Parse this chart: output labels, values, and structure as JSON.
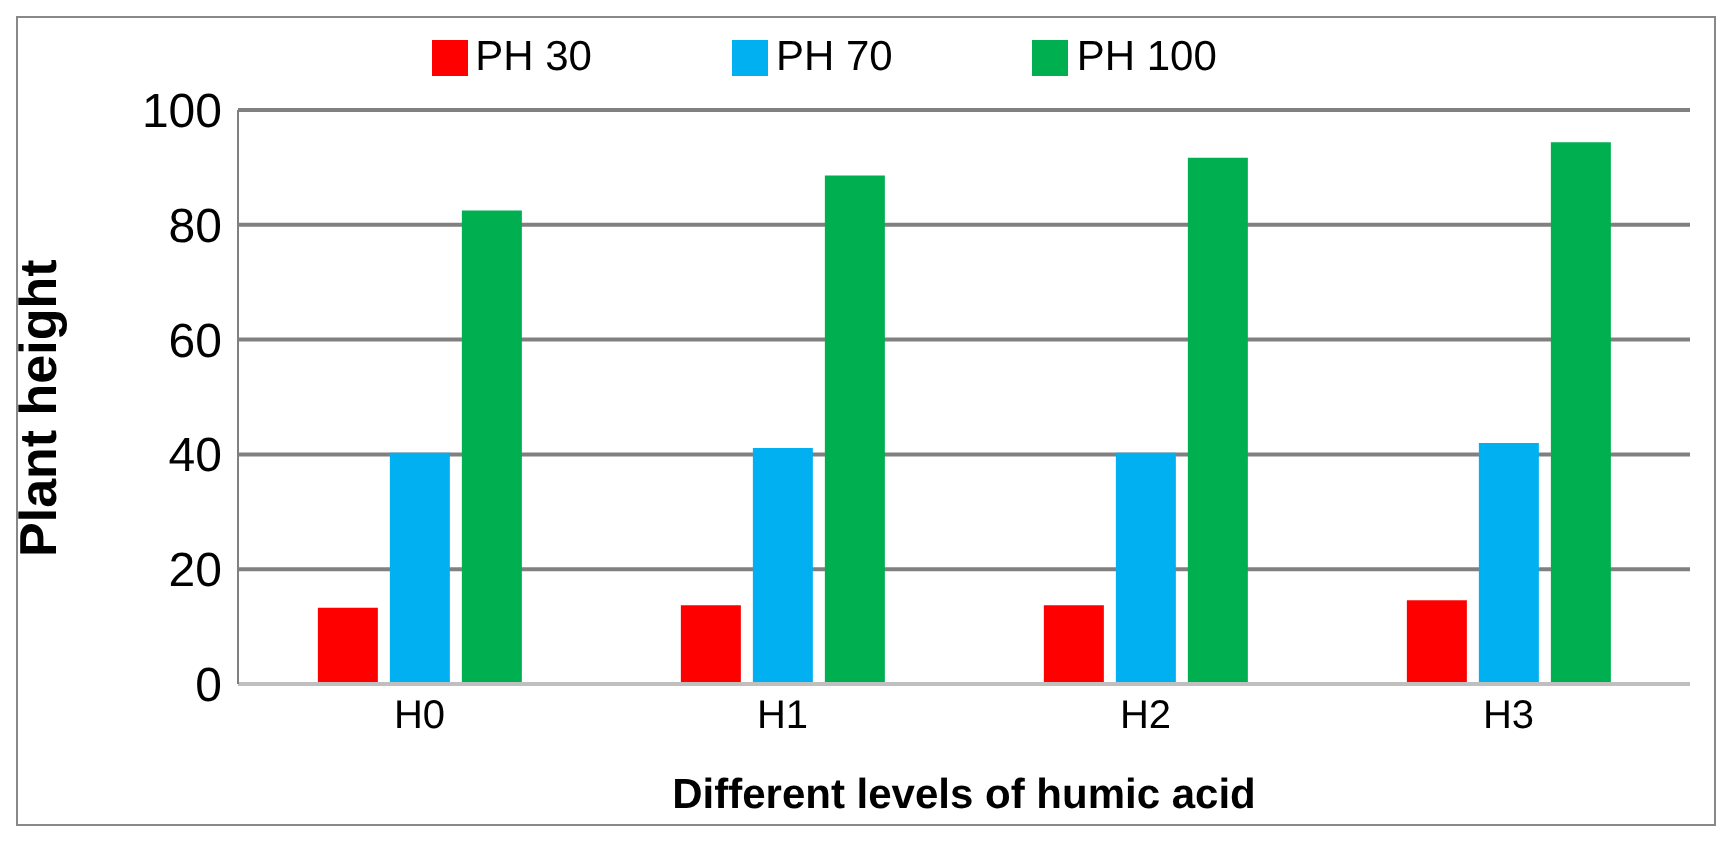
{
  "chart_data": {
    "type": "bar",
    "xlabel": "Different levels of humic acid",
    "ylabel": "Plant height",
    "categories": [
      "H0",
      "H1",
      "H2",
      "H3"
    ],
    "series": [
      {
        "name": "PH 30",
        "color": "#ff0000",
        "values": [
          13.3,
          13.7,
          13.7,
          14.6
        ]
      },
      {
        "name": "PH 70",
        "color": "#00b0f0",
        "values": [
          40.3,
          41.1,
          40.3,
          42
        ]
      },
      {
        "name": "PH 100",
        "color": "#00b050",
        "values": [
          82.5,
          88.6,
          91.7,
          94.4
        ]
      }
    ],
    "ylim": [
      0,
      100
    ],
    "yticks": [
      0,
      20,
      40,
      60,
      80,
      100
    ],
    "grid": "y",
    "legend": "top"
  }
}
